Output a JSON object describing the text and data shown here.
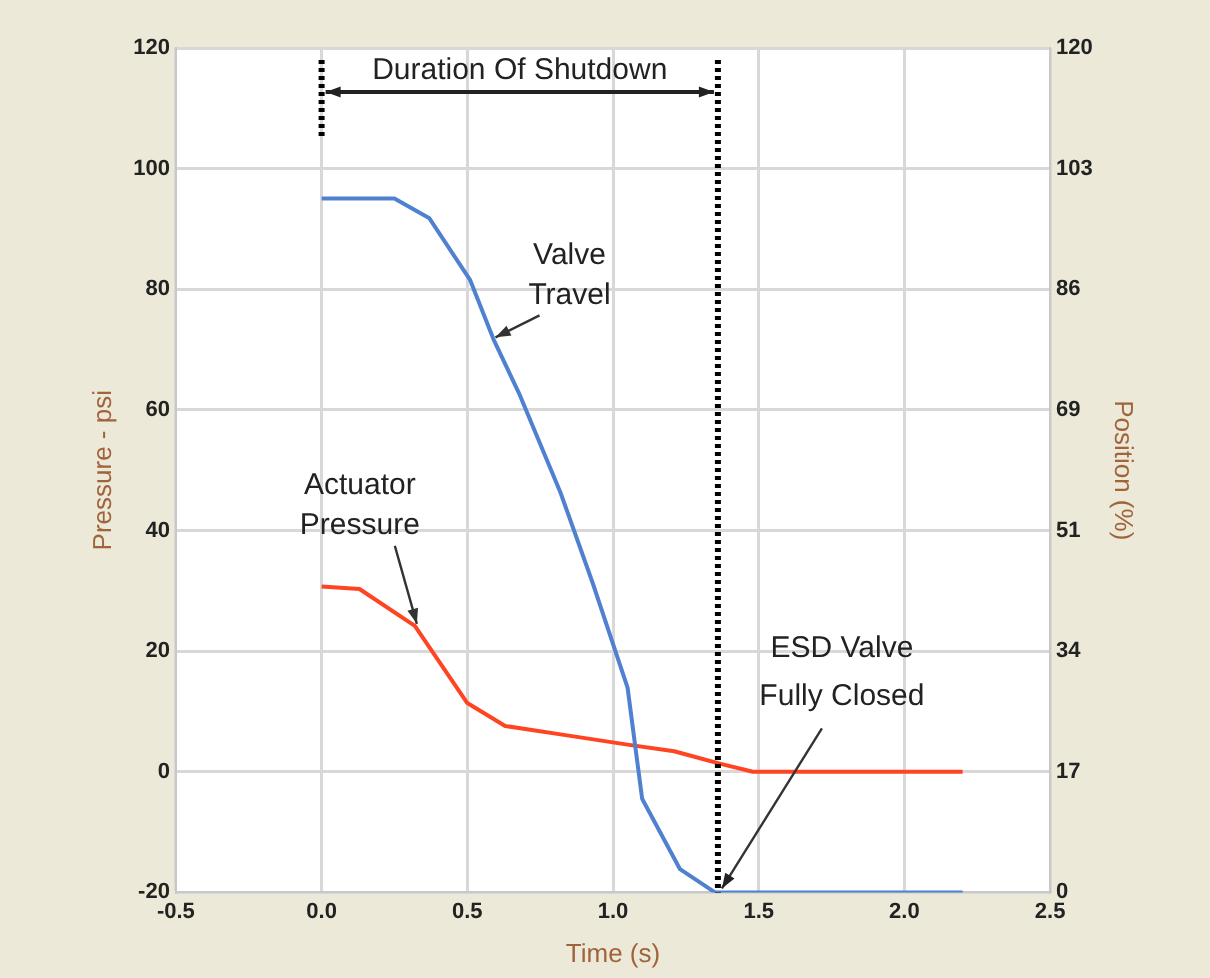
{
  "chart_data": {
    "type": "line",
    "xlabel": "Time (s)",
    "ylabel": "Pressure - psi",
    "y2label": "Position (%)",
    "xlim": [
      -0.5,
      2.5
    ],
    "xticks": [
      -0.5,
      {
        "value": 0,
        "label": "0.0"
      },
      0.5,
      {
        "value": 1,
        "label": "1.0"
      },
      1.5,
      {
        "value": 2,
        "label": "2.0"
      },
      2.5
    ],
    "ylim": [
      -20,
      120
    ],
    "yticks": [
      -20,
      0,
      20,
      40,
      60,
      80,
      100,
      120
    ],
    "y2lim": [
      0,
      120
    ],
    "y2ticks": [
      0,
      {
        "value": 17.14,
        "label": "17"
      },
      {
        "value": 34.29,
        "label": "34"
      },
      {
        "value": 51.43,
        "label": "51"
      },
      {
        "value": 68.57,
        "label": "69"
      },
      {
        "value": 85.71,
        "label": "86"
      },
      {
        "value": 102.86,
        "label": "103"
      },
      120
    ],
    "series": [
      {
        "name": "Valve Travel",
        "color": "#4f81d0",
        "axis": "y2",
        "x": [
          0,
          0.25,
          0.37,
          0.51,
          0.59,
          0.68,
          0.82,
          0.93,
          1.05,
          1.1,
          1.23,
          1.35,
          2.2
        ],
        "values": [
          98.6,
          98.6,
          95.8,
          87,
          78.6,
          70.7,
          56.8,
          44,
          29.1,
          13.3,
          3.3,
          0,
          0
        ]
      },
      {
        "name": "Actuator Pressure",
        "color": "#ff4422",
        "x": [
          0,
          0.13,
          0.32,
          0.5,
          0.63,
          0.82,
          1.05,
          1.21,
          1.37,
          1.48,
          2.2
        ],
        "values": [
          30.7,
          30.3,
          24.2,
          11.4,
          7.6,
          6.2,
          4.5,
          3.4,
          1.3,
          0,
          0
        ]
      }
    ],
    "ref_lines": [
      {
        "axis": "x",
        "value": 0,
        "line_style": "dotted",
        "color": "#000000"
      },
      {
        "axis": "x",
        "value": 1.36,
        "line_style": "dotted",
        "color": "#000000"
      }
    ],
    "annotations": [
      "Duration Of Shutdown",
      {
        "text": "ESD Valve Fully Closed",
        "x": 1.36,
        "y": -20
      }
    ],
    "grid": true,
    "legend": false,
    "marker": "none",
    "line_style": "solid"
  }
}
